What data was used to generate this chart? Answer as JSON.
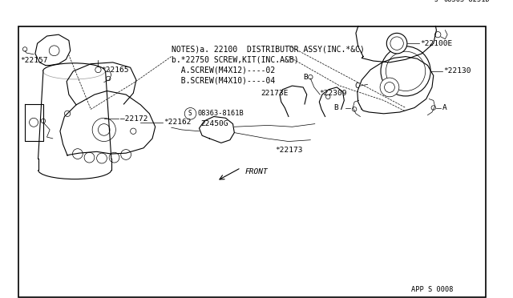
{
  "bg_color": "#ffffff",
  "line_color": "#000000",
  "notes_lines": [
    "NOTES)a. 22100  DISTRIBUTOR ASSY(INC.*&C)",
    "b.*22750 SCREW,KIT(INC.A&B)",
    "  A.SCREW(M4X12)----02",
    "  B.SCREW(M4X10)----04"
  ],
  "font_size_notes": 7.0,
  "font_size_label": 6.8,
  "font_size_small": 6.2
}
